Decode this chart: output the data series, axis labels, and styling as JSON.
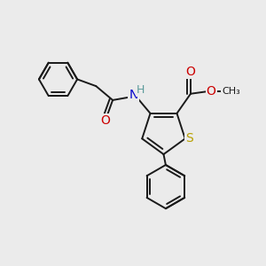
{
  "bg_color": "#ebebeb",
  "bond_color": "#1a1a1a",
  "bond_width": 1.4,
  "dbo": 0.013,
  "atom_colors": {
    "S": "#b8a000",
    "O": "#cc0000",
    "N": "#0000cc",
    "H": "#5a9a9a",
    "C": "#1a1a1a"
  }
}
